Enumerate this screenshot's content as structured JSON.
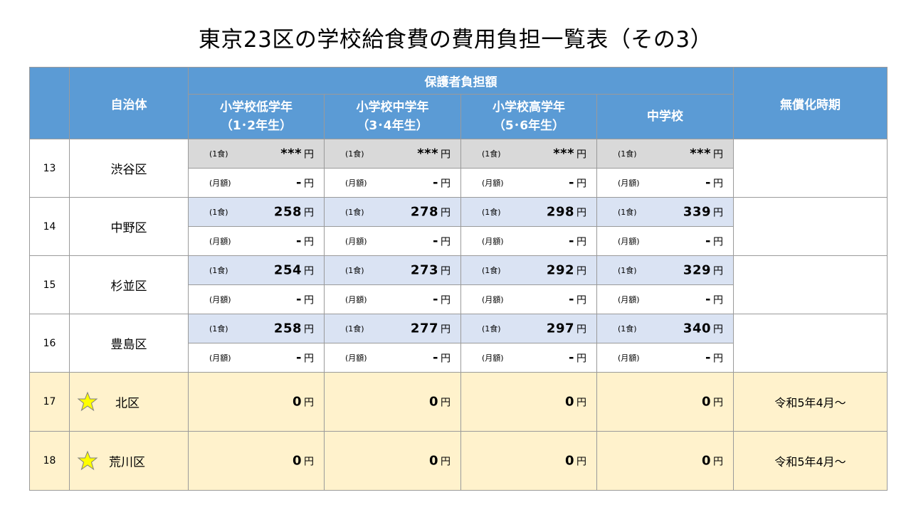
{
  "title": "東京23区の学校給食費の費用負担一覧表（その3）",
  "headers": {
    "municipality": "自治体",
    "guardian": "保護者負担額",
    "free_period": "無償化時期",
    "grades": [
      {
        "line1": "小学校低学年",
        "line2": "（1･2年生）"
      },
      {
        "line1": "小学校中学年",
        "line2": "（3･4年生）"
      },
      {
        "line1": "小学校高学年",
        "line2": "（5･6年生）"
      },
      {
        "line1": "中学校",
        "line2": ""
      }
    ]
  },
  "labels": {
    "meal": "(1食)",
    "month": "(月額)",
    "yen": "円"
  },
  "rows": [
    {
      "no": "13",
      "name": "渋谷区",
      "meal": [
        "***",
        "***",
        "***",
        "***"
      ],
      "month": [
        "-",
        "-",
        "-",
        "-"
      ],
      "free_period": ""
    },
    {
      "no": "14",
      "name": "中野区",
      "meal": [
        "258",
        "278",
        "298",
        "339"
      ],
      "month": [
        "-",
        "-",
        "-",
        "-"
      ],
      "free_period": ""
    },
    {
      "no": "15",
      "name": "杉並区",
      "meal": [
        "254",
        "273",
        "292",
        "329"
      ],
      "month": [
        "-",
        "-",
        "-",
        "-"
      ],
      "free_period": ""
    },
    {
      "no": "16",
      "name": "豊島区",
      "meal": [
        "258",
        "277",
        "297",
        "340"
      ],
      "month": [
        "-",
        "-",
        "-",
        "-"
      ],
      "free_period": ""
    }
  ],
  "free_rows": [
    {
      "no": "17",
      "name": "北区",
      "values": [
        "0",
        "0",
        "0",
        "0"
      ],
      "free_period": "令和5年4月～"
    },
    {
      "no": "18",
      "name": "荒川区",
      "values": [
        "0",
        "0",
        "0",
        "0"
      ],
      "free_period": "令和5年4月～"
    }
  ],
  "colors": {
    "header": "#5b9bd5",
    "meal_gray": "#d9d9d9",
    "meal_blue": "#dae3f3",
    "free_yellow": "#fff2cc",
    "star": "#ffff00"
  }
}
